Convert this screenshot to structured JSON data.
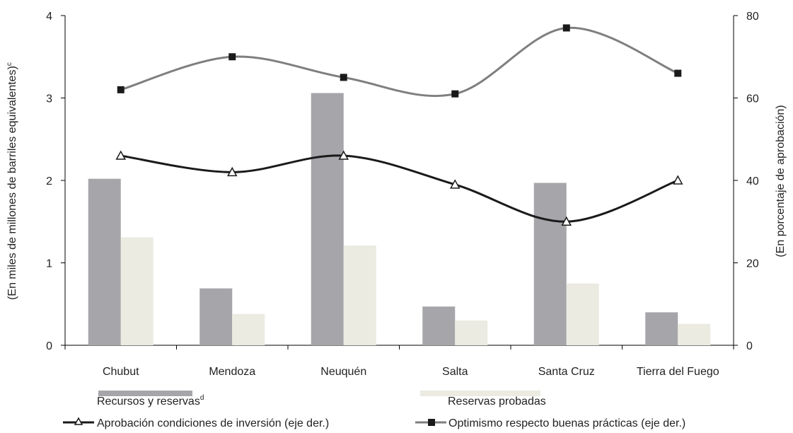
{
  "chart_data": {
    "type": "bar",
    "categories": [
      "Chubut",
      "Mendoza",
      "Neuquén",
      "Salta",
      "Santa Cruz",
      "Tierra del Fuego"
    ],
    "ylabel": "(En miles de millones de barriles equivalentes)",
    "ylabel_sup": "c",
    "y2label": "(En  porcentaje de aprobación)",
    "ylim": [
      0,
      4
    ],
    "y2lim": [
      0,
      80
    ],
    "yticks": [
      "0",
      "1",
      "2",
      "3",
      "4"
    ],
    "y2ticks": [
      "0",
      "20",
      "40",
      "60",
      "80"
    ],
    "series": [
      {
        "name": "Recursos y reservas",
        "name_sup": "d",
        "kind": "bar",
        "axis": "left",
        "color": "#a6a6aa",
        "values": [
          2.02,
          0.69,
          3.06,
          0.47,
          1.97,
          0.4
        ]
      },
      {
        "name": "Reservas probadas",
        "kind": "bar",
        "axis": "left",
        "color": "#ecebe2",
        "values": [
          1.31,
          0.38,
          1.21,
          0.3,
          0.75,
          0.26
        ]
      },
      {
        "name": "Aprobación condiciones de inversión (eje der.)",
        "kind": "line",
        "axis": "right",
        "color": "#1a1a1a",
        "marker": "triangle",
        "values": [
          46,
          42,
          46,
          39,
          30,
          40
        ]
      },
      {
        "name": "Optimismo respecto buenas prácticas (eje der.)",
        "kind": "line",
        "axis": "right",
        "color": "#7f7f7f",
        "marker": "square",
        "values": [
          62,
          70,
          65,
          61,
          77,
          66
        ]
      }
    ],
    "legend_position": "bottom",
    "grid": false
  }
}
